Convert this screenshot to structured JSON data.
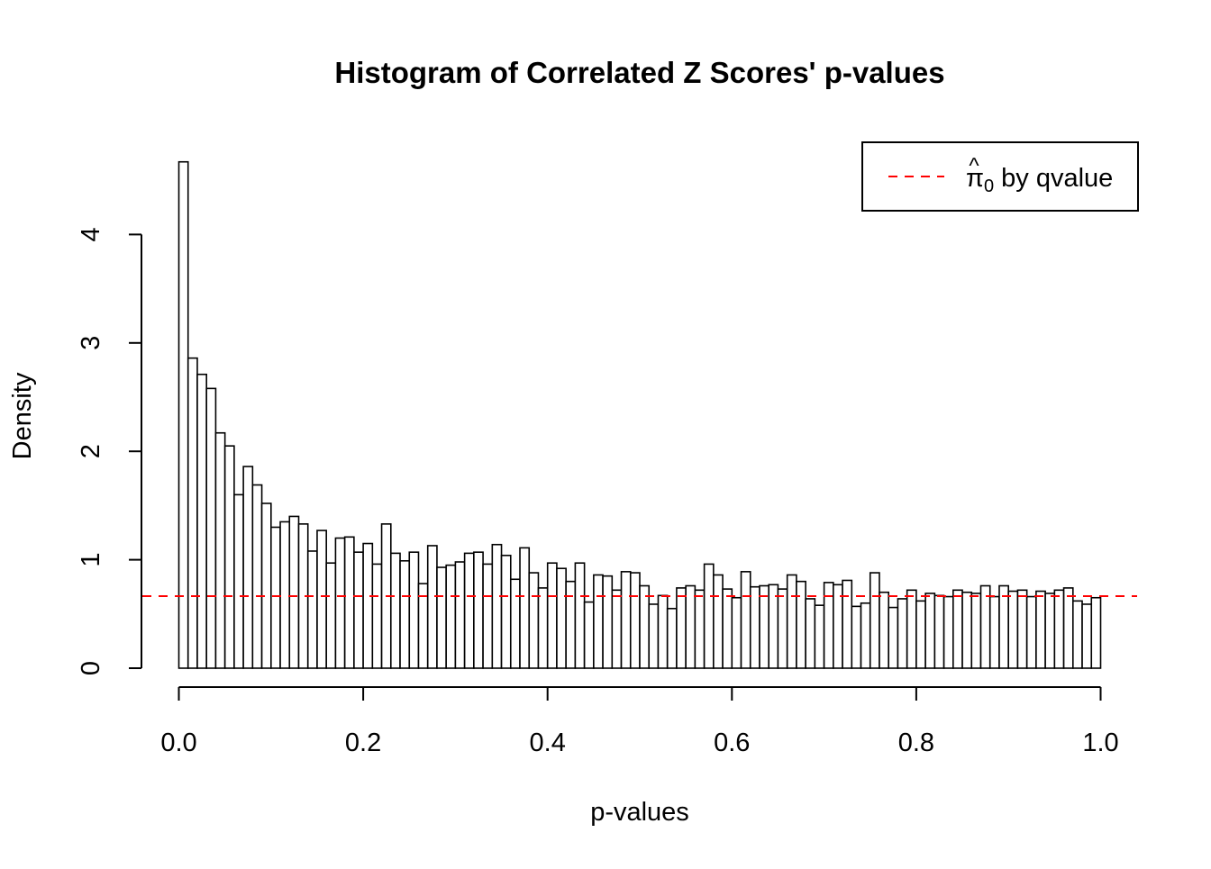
{
  "chart_data": {
    "type": "bar",
    "title": "Histogram of Correlated Z Scores' p-values",
    "xlabel": "p-values",
    "ylabel": "Density",
    "xlim": [
      0,
      1
    ],
    "ylim": [
      0,
      4.7
    ],
    "x_ticks": [
      "0.0",
      "0.2",
      "0.4",
      "0.6",
      "0.8",
      "1.0"
    ],
    "y_ticks": [
      "0",
      "1",
      "2",
      "3",
      "4"
    ],
    "bin_width": 0.01,
    "values": [
      4.67,
      2.86,
      2.71,
      2.58,
      2.17,
      2.05,
      1.6,
      1.86,
      1.69,
      1.52,
      1.3,
      1.35,
      1.4,
      1.33,
      1.08,
      1.27,
      0.97,
      1.2,
      1.21,
      1.07,
      1.15,
      0.96,
      1.33,
      1.06,
      0.99,
      1.07,
      0.78,
      1.13,
      0.93,
      0.95,
      0.98,
      1.06,
      1.07,
      0.96,
      1.14,
      1.04,
      0.82,
      1.11,
      0.88,
      0.74,
      0.97,
      0.92,
      0.8,
      0.97,
      0.61,
      0.86,
      0.85,
      0.72,
      0.89,
      0.88,
      0.76,
      0.59,
      0.67,
      0.55,
      0.74,
      0.76,
      0.72,
      0.96,
      0.86,
      0.73,
      0.65,
      0.89,
      0.75,
      0.76,
      0.77,
      0.73,
      0.86,
      0.8,
      0.64,
      0.58,
      0.79,
      0.77,
      0.81,
      0.57,
      0.6,
      0.88,
      0.7,
      0.56,
      0.64,
      0.72,
      0.62,
      0.69,
      0.67,
      0.66,
      0.72,
      0.7,
      0.69,
      0.76,
      0.66,
      0.76,
      0.71,
      0.72,
      0.66,
      0.71,
      0.69,
      0.72,
      0.74,
      0.62,
      0.59,
      0.65
    ],
    "reference_line": {
      "y": 0.664,
      "color": "#ff0000",
      "style": "dashed"
    },
    "legend": {
      "position": "top-right",
      "label": "π̂₀ by qvalue",
      "symbol": "π",
      "subscript": "0",
      "suffix": "by qvalue"
    },
    "grid": false
  }
}
